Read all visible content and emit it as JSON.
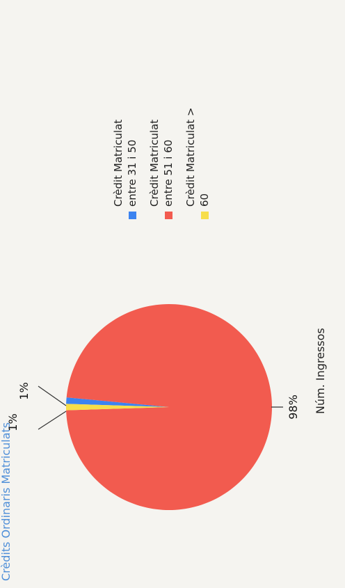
{
  "chart_data": {
    "type": "pie",
    "title": "Crèdits Ordinaris Matriculats",
    "xlabel": "Núm. Ingressos",
    "categories": [
      "Crèdit Matriculat entre 31 i 50",
      "Crèdit Matriculat entre 51 i 60",
      "Crèdit Matriculat > 60"
    ],
    "legend_lines": [
      [
        "Crèdit Matriculat",
        "entre  31 i 50"
      ],
      [
        "Crèdit Matriculat",
        "entre  51 i 60"
      ],
      [
        "Crèdit Matriculat >",
        "60"
      ]
    ],
    "values": [
      1,
      98,
      1
    ],
    "data_labels": [
      "1%",
      "98%",
      "1%"
    ],
    "colors": [
      "#3c83f0",
      "#f25b4f",
      "#f7de4a"
    ],
    "legend": "right"
  }
}
